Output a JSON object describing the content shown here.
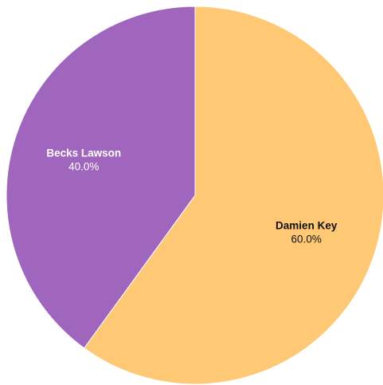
{
  "chart_data": {
    "type": "pie",
    "title": "",
    "legend": "none",
    "slices": [
      {
        "label": "Damien Key",
        "value": 60.0,
        "percent_label": "60.0%",
        "color": "#FFC875",
        "text_color": "#111111"
      },
      {
        "label": "Becks Lawson",
        "value": 40.0,
        "percent_label": "40.0%",
        "color": "#A066BE",
        "text_color": "#FFFFFF"
      }
    ]
  }
}
